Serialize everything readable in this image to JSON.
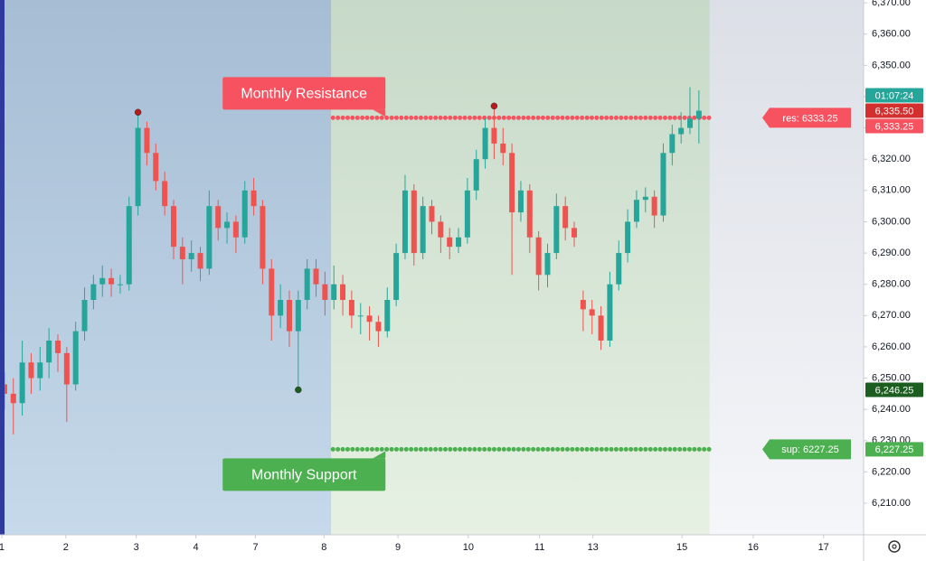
{
  "chart_data": {
    "type": "candlestick",
    "ohlc": [
      [
        6248,
        6252,
        6240,
        6245
      ],
      [
        6245,
        6250,
        6232,
        6242
      ],
      [
        6242,
        6262,
        6238,
        6255
      ],
      [
        6255,
        6258,
        6245,
        6250
      ],
      [
        6250,
        6260,
        6246,
        6255
      ],
      [
        6255,
        6266,
        6250,
        6262
      ],
      [
        6262,
        6264,
        6252,
        6258
      ],
      [
        6258,
        6260,
        6236,
        6248
      ],
      [
        6248,
        6268,
        6246,
        6265
      ],
      [
        6265,
        6279,
        6262,
        6275
      ],
      [
        6275,
        6283,
        6272,
        6280
      ],
      [
        6280,
        6286,
        6276,
        6282
      ],
      [
        6282,
        6285,
        6276,
        6280
      ],
      [
        6280,
        6283,
        6277,
        6280
      ],
      [
        6280,
        6308,
        6278,
        6305
      ],
      [
        6305,
        6335,
        6302,
        6330
      ],
      [
        6330,
        6332,
        6318,
        6322
      ],
      [
        6322,
        6325,
        6310,
        6313
      ],
      [
        6313,
        6316,
        6302,
        6305
      ],
      [
        6305,
        6307,
        6288,
        6292
      ],
      [
        6292,
        6295,
        6280,
        6288
      ],
      [
        6288,
        6294,
        6284,
        6290
      ],
      [
        6290,
        6292,
        6281,
        6285
      ],
      [
        6285,
        6310,
        6283,
        6305
      ],
      [
        6305,
        6307,
        6294,
        6298
      ],
      [
        6298,
        6303,
        6293,
        6300
      ],
      [
        6300,
        6302,
        6290,
        6295
      ],
      [
        6295,
        6313,
        6293,
        6310
      ],
      [
        6310,
        6314,
        6302,
        6305
      ],
      [
        6305,
        6307,
        6280,
        6285
      ],
      [
        6285,
        6288,
        6262,
        6270
      ],
      [
        6270,
        6280,
        6266,
        6275
      ],
      [
        6275,
        6278,
        6260,
        6265
      ],
      [
        6265,
        6278,
        6246.25,
        6275
      ],
      [
        6275,
        6288,
        6272,
        6285
      ],
      [
        6285,
        6288,
        6276,
        6280
      ],
      [
        6280,
        6284,
        6270,
        6275
      ],
      [
        6275,
        6286,
        6272,
        6280
      ],
      [
        6280,
        6283,
        6270,
        6275
      ],
      [
        6275,
        6278,
        6266,
        6270
      ],
      [
        6270,
        6274,
        6264,
        6270
      ],
      [
        6270,
        6273,
        6262,
        6268
      ],
      [
        6268,
        6270,
        6260,
        6265
      ],
      [
        6265,
        6279,
        6263,
        6275
      ],
      [
        6275,
        6293,
        6273,
        6290
      ],
      [
        6290,
        6315,
        6288,
        6310
      ],
      [
        6310,
        6312,
        6286,
        6290
      ],
      [
        6290,
        6308,
        6288,
        6305
      ],
      [
        6305,
        6307,
        6296,
        6300
      ],
      [
        6300,
        6302,
        6290,
        6295
      ],
      [
        6295,
        6298,
        6288,
        6292
      ],
      [
        6292,
        6298,
        6290,
        6295
      ],
      [
        6295,
        6314,
        6293,
        6310
      ],
      [
        6310,
        6323,
        6307,
        6320
      ],
      [
        6320,
        6333,
        6317,
        6330
      ],
      [
        6330,
        6337,
        6320,
        6325
      ],
      [
        6325,
        6330,
        6318,
        6322
      ],
      [
        6322,
        6325,
        6283,
        6303
      ],
      [
        6303,
        6313,
        6300,
        6310
      ],
      [
        6310,
        6312,
        6290,
        6295
      ],
      [
        6295,
        6297,
        6278,
        6283
      ],
      [
        6283,
        6293,
        6279,
        6290
      ],
      [
        6290,
        6309,
        6288,
        6305
      ],
      [
        6305,
        6308,
        6294,
        6298
      ],
      [
        6298,
        6300,
        6292,
        6295
      ],
      [
        6275,
        6278,
        6265,
        6272
      ],
      [
        6272,
        6275,
        6264,
        6270
      ],
      [
        6270,
        6273,
        6259,
        6262
      ],
      [
        6262,
        6284,
        6260,
        6280
      ],
      [
        6280,
        6294,
        6278,
        6290
      ],
      [
        6290,
        6304,
        6287,
        6300
      ],
      [
        6300,
        6310,
        6298,
        6307
      ],
      [
        6307,
        6311,
        6303,
        6308
      ],
      [
        6308,
        6310,
        6298,
        6302
      ],
      [
        6302,
        6325,
        6300,
        6322
      ],
      [
        6322,
        6331,
        6318,
        6328
      ],
      [
        6328,
        6335,
        6325,
        6330
      ],
      [
        6330,
        6343,
        6328,
        6333
      ],
      [
        6333,
        6342,
        6325,
        6335.5
      ]
    ],
    "up_color": "#26a69a",
    "down_color": "#ef5350",
    "xlim": [
      0,
      97
    ],
    "ylim": [
      6199.9,
      6370.9
    ],
    "yticks": [
      {
        "value": 6210,
        "label": "6,210.00"
      },
      {
        "value": 6220,
        "label": "6,220.00"
      },
      {
        "value": 6230,
        "label": "6,230.00"
      },
      {
        "value": 6240,
        "label": "6,240.00"
      },
      {
        "value": 6250,
        "label": "6,250.00"
      },
      {
        "value": 6260,
        "label": "6,260.00"
      },
      {
        "value": 6270,
        "label": "6,270.00"
      },
      {
        "value": 6280,
        "label": "6,280.00"
      },
      {
        "value": 6290,
        "label": "6,290.00"
      },
      {
        "value": 6300,
        "label": "6,300.00"
      },
      {
        "value": 6310,
        "label": "6,310.00"
      },
      {
        "value": 6320,
        "label": "6,320.00"
      },
      {
        "value": 6330,
        "label": "6,330.00"
      },
      {
        "value": 6340,
        "label": "6,340.00"
      },
      {
        "value": 6350,
        "label": "6,350.00"
      },
      {
        "value": 6360,
        "label": "6,360.00"
      },
      {
        "value": 6370,
        "label": "6,370.00"
      }
    ],
    "xticks": [
      {
        "value": 0.2,
        "label": "1"
      },
      {
        "value": 7.4,
        "label": "2"
      },
      {
        "value": 15.3,
        "label": "3"
      },
      {
        "value": 22,
        "label": "4"
      },
      {
        "value": 28.7,
        "label": "7"
      },
      {
        "value": 36.4,
        "label": "8"
      },
      {
        "value": 44.7,
        "label": "9"
      },
      {
        "value": 52.6,
        "label": "10"
      },
      {
        "value": 60.6,
        "label": "11"
      },
      {
        "value": 66.6,
        "label": "13"
      },
      {
        "value": 76.6,
        "label": "15"
      },
      {
        "value": 84.6,
        "label": "16"
      },
      {
        "value": 92.5,
        "label": "17"
      }
    ],
    "sessions": [
      {
        "from": 0.5,
        "to": 37.2,
        "colors": [
          "#a6bdd4",
          "#c6d9ea"
        ]
      },
      {
        "from": 37.2,
        "to": 79.7,
        "colors": [
          "#c7d9c8",
          "#e6f1e3"
        ]
      }
    ],
    "levels": [
      {
        "name": "Monthly Resistance",
        "value": 6333.25,
        "tag": "res: 6333.25",
        "color": "#f7525f",
        "from": 37.2,
        "to": 79.7,
        "position": "above"
      },
      {
        "name": "Monthly Support",
        "value": 6227.25,
        "tag": "sup: 6227.25",
        "color": "#4caf50",
        "from": 37.2,
        "to": 79.7,
        "position": "below"
      }
    ],
    "markers": [
      {
        "candle": 15,
        "at": "high",
        "color": "#b71c1c"
      },
      {
        "candle": 55,
        "at": "high",
        "color": "#b71c1c"
      },
      {
        "candle": 33,
        "at": "low",
        "color": "#1b5e20"
      }
    ],
    "price_tags": [
      {
        "value": 6335.5,
        "label": "6,335.50",
        "color": "#d32f2f"
      },
      {
        "value": 6333.25,
        "label": "6,333.25",
        "color": "#f7525f"
      },
      {
        "value": 6246.25,
        "label": "6,246.25",
        "color": "#1b5e20"
      },
      {
        "value": 6227.25,
        "label": "6,227.25",
        "color": "#4caf50"
      }
    ],
    "countdown": "01:07:24",
    "countdown_color": "#26a69a"
  }
}
